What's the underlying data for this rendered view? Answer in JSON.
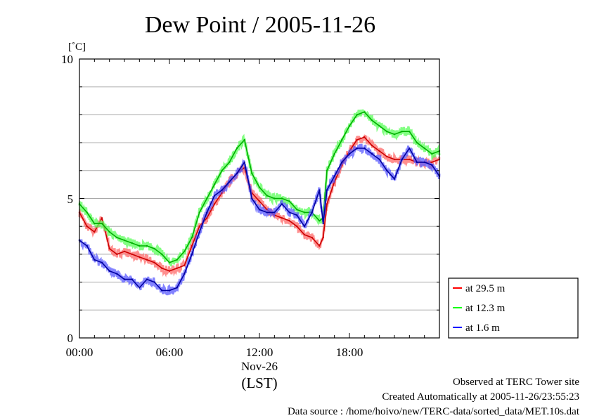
{
  "chart_data": {
    "type": "line",
    "title": "Dew Point / 2005-11-26",
    "ylabel": "[˚C]",
    "xlabel": "(LST)",
    "ylim": [
      0,
      10
    ],
    "xlim_hours": [
      0,
      24
    ],
    "x_tick_labels": [
      "00:00",
      "06:00",
      "12:00",
      "18:00"
    ],
    "x_date_label": "Nov-26",
    "y_tick_labels": [
      "0",
      "5",
      "10"
    ],
    "grid": true,
    "legend_position": "bottom-right outside",
    "series": [
      {
        "name": "at 29.5 m",
        "color": "#ff0000",
        "x_hours": [
          0,
          0.5,
          1,
          1.5,
          2,
          2.5,
          3,
          3.5,
          4,
          4.5,
          5,
          5.5,
          6,
          6.5,
          7,
          7.5,
          8,
          8.5,
          9,
          9.5,
          10,
          10.5,
          11,
          11.5,
          12,
          12.5,
          13,
          13.5,
          14,
          14.5,
          15,
          15.5,
          16,
          16.25,
          16.5,
          17,
          17.5,
          18,
          18.5,
          19,
          19.5,
          20,
          20.5,
          21,
          21.5,
          22,
          22.5,
          23,
          23.5,
          24
        ],
        "values": [
          4.5,
          4.0,
          3.8,
          4.3,
          3.2,
          3.0,
          3.1,
          3.0,
          2.9,
          2.8,
          2.7,
          2.5,
          2.4,
          2.5,
          2.6,
          3.3,
          4.0,
          4.3,
          4.8,
          5.2,
          5.6,
          5.9,
          6.1,
          5.2,
          4.9,
          4.6,
          4.4,
          4.3,
          4.2,
          4.0,
          3.7,
          3.6,
          3.3,
          3.6,
          4.8,
          5.6,
          6.2,
          6.7,
          7.1,
          7.2,
          6.9,
          6.7,
          6.5,
          6.4,
          6.4,
          6.4,
          6.3,
          6.3,
          6.3,
          6.4
        ]
      },
      {
        "name": "at 12.3 m",
        "color": "#00ff00",
        "x_hours": [
          0,
          0.5,
          1,
          1.5,
          2,
          2.5,
          3,
          3.5,
          4,
          4.5,
          5,
          5.5,
          6,
          6.5,
          7,
          7.5,
          8,
          8.5,
          9,
          9.5,
          10,
          10.5,
          11,
          11.5,
          12,
          12.5,
          13,
          13.5,
          14,
          14.5,
          15,
          15.5,
          16,
          16.25,
          16.5,
          17,
          17.5,
          18,
          18.5,
          19,
          19.5,
          20,
          20.5,
          21,
          21.5,
          22,
          22.5,
          23,
          23.5,
          24
        ],
        "values": [
          4.8,
          4.5,
          4.1,
          4.1,
          3.8,
          3.6,
          3.5,
          3.4,
          3.3,
          3.3,
          3.2,
          3.0,
          2.7,
          2.8,
          3.1,
          3.6,
          4.5,
          5.0,
          5.5,
          6.0,
          6.3,
          6.8,
          7.1,
          5.9,
          5.4,
          5.1,
          5.0,
          5.0,
          4.9,
          4.6,
          4.5,
          4.5,
          4.2,
          4.3,
          6.0,
          6.6,
          7.1,
          7.6,
          8.0,
          8.1,
          7.8,
          7.6,
          7.4,
          7.3,
          7.4,
          7.4,
          7.0,
          6.8,
          6.6,
          6.7
        ]
      },
      {
        "name": "at 1.6 m",
        "color": "#0000ff",
        "x_hours": [
          0,
          0.5,
          1,
          1.5,
          2,
          2.5,
          3,
          3.5,
          4,
          4.5,
          5,
          5.5,
          6,
          6.5,
          7,
          7.5,
          8,
          8.5,
          9,
          9.5,
          10,
          10.5,
          11,
          11.5,
          12,
          12.5,
          13,
          13.5,
          14,
          14.5,
          15,
          15.5,
          16,
          16.25,
          16.5,
          17,
          17.5,
          18,
          18.5,
          19,
          19.5,
          20,
          20.5,
          21,
          21.5,
          22,
          22.5,
          23,
          23.5,
          24
        ],
        "values": [
          3.5,
          3.3,
          2.8,
          2.7,
          2.4,
          2.3,
          2.1,
          2.1,
          1.8,
          2.1,
          2.0,
          1.7,
          1.7,
          1.8,
          2.3,
          3.0,
          3.8,
          4.5,
          5.1,
          5.3,
          5.6,
          5.9,
          6.3,
          5.0,
          4.6,
          4.5,
          4.5,
          4.8,
          4.5,
          4.4,
          4.0,
          4.5,
          5.3,
          4.1,
          5.3,
          5.8,
          6.3,
          6.6,
          6.8,
          6.8,
          6.6,
          6.4,
          6.0,
          5.7,
          6.4,
          6.8,
          6.3,
          6.3,
          6.2,
          5.8
        ]
      }
    ]
  },
  "footer": {
    "line1": "Observed at TERC Tower site",
    "line2": "Created Automatically at 2005-11-26/23:55:23",
    "line3": "Data source : /home/hoivo/new/TERC-data/sorted_data/MET.10s.dat"
  }
}
